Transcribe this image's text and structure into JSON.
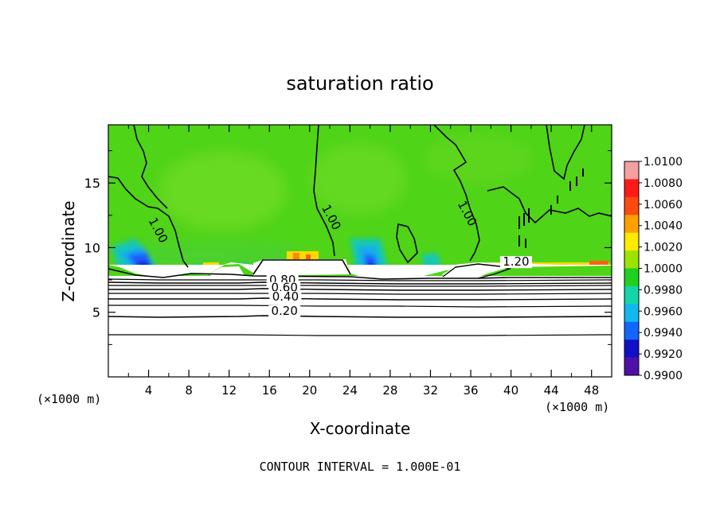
{
  "chart_data": {
    "type": "heatmap",
    "title": "saturation ratio",
    "xlabel": "X-coordinate",
    "ylabel": "Z-coordinate",
    "x_unit_left": "(×1000 m)",
    "x_unit_right": "(×1000 m)",
    "x_ticks": [
      "4",
      "8",
      "12",
      "16",
      "20",
      "24",
      "28",
      "32",
      "36",
      "40",
      "44",
      "48"
    ],
    "y_ticks": [
      "5",
      "10",
      "15"
    ],
    "xlim": [
      0,
      50
    ],
    "ylim": [
      0,
      19.5
    ],
    "colorbar": {
      "labels": [
        "1.0100",
        "1.0080",
        "1.0060",
        "1.0040",
        "1.0020",
        "1.0000",
        "0.9980",
        "0.9960",
        "0.9940",
        "0.9920",
        "0.9900"
      ],
      "colors": [
        "#f4a0a0",
        "#ff1a1a",
        "#ff4a10",
        "#ffa000",
        "#ffea00",
        "#9ae400",
        "#20d020",
        "#12d6a8",
        "#12b8f0",
        "#1266ff",
        "#1010c8",
        "#5010a8"
      ]
    },
    "contour_labels": [
      {
        "text": "1.00",
        "x": 4.6,
        "z": 11.2
      },
      {
        "text": "1.00",
        "x": 21.8,
        "z": 12.2
      },
      {
        "text": "1.00",
        "x": 35.3,
        "z": 12.5
      },
      {
        "text": "1.20",
        "x": 40.5,
        "z": 8.6
      },
      {
        "text": "0.80",
        "x": 17.3,
        "z": 7.2
      },
      {
        "text": "0.60",
        "x": 17.5,
        "z": 6.6
      },
      {
        "text": "0.40",
        "x": 17.6,
        "z": 5.9
      },
      {
        "text": "0.20",
        "x": 17.5,
        "z": 4.8
      }
    ],
    "contour_interval_label": "CONTOUR INTERVAL = 1.000E-01"
  }
}
